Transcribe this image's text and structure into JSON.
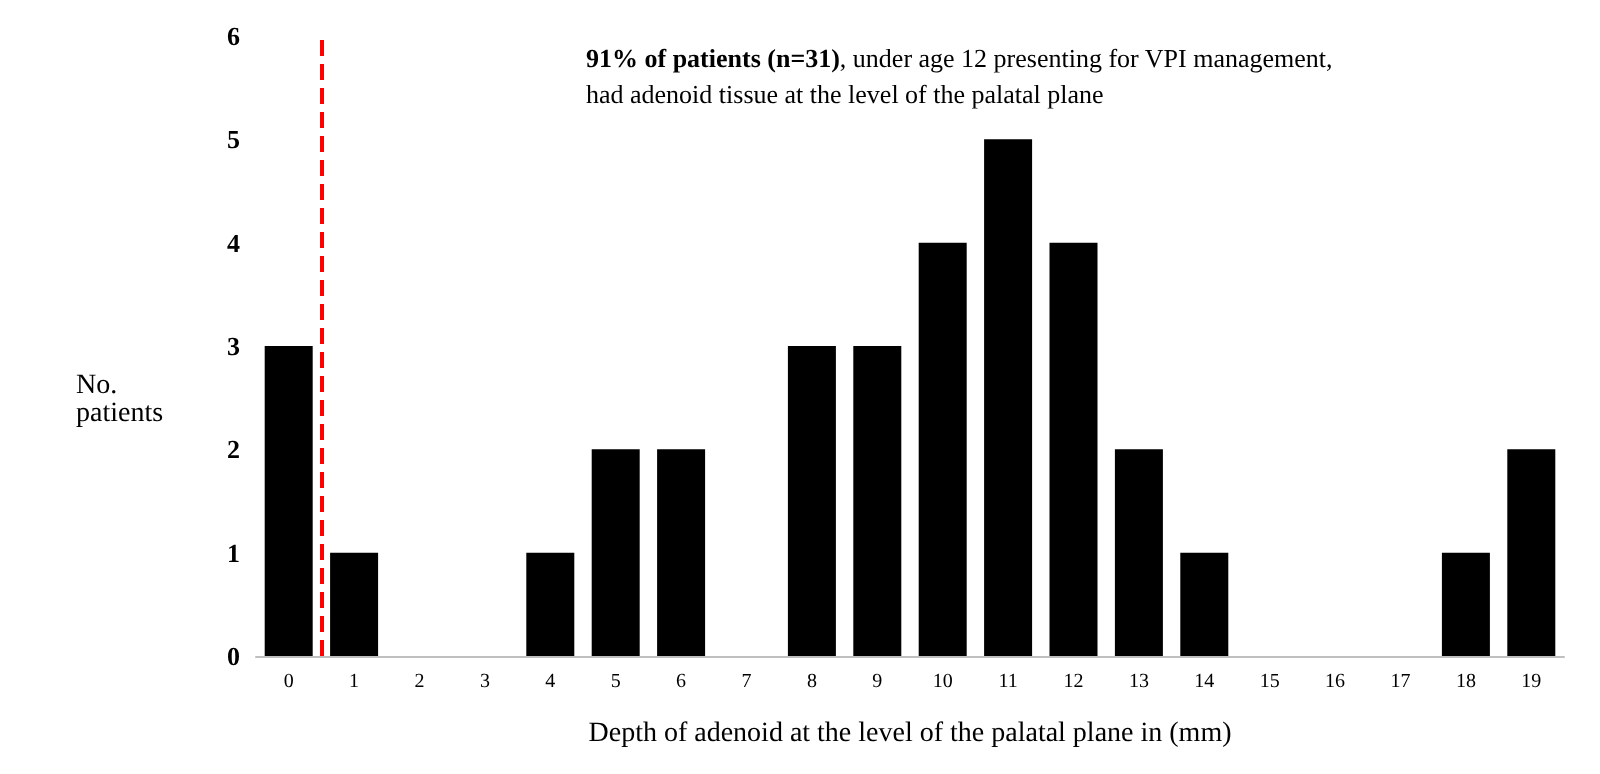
{
  "chart_data": {
    "type": "bar",
    "x": [
      0,
      1,
      2,
      3,
      4,
      5,
      6,
      7,
      8,
      9,
      10,
      11,
      12,
      13,
      14,
      15,
      16,
      17,
      18,
      19
    ],
    "values": [
      3,
      1,
      0,
      0,
      1,
      2,
      2,
      0,
      3,
      3,
      4,
      5,
      4,
      2,
      1,
      0,
      0,
      0,
      1,
      2
    ],
    "color": "#000000",
    "xlabel": "Depth of adenoid at the level of the palatal plane in (mm)",
    "ylabel": "No.\npatients",
    "xlim": [
      -0.5,
      19.5
    ],
    "xticks": [
      0,
      1,
      2,
      3,
      4,
      5,
      6,
      7,
      8,
      9,
      10,
      11,
      12,
      13,
      14,
      15,
      16,
      17,
      18,
      19
    ],
    "ylim": [
      0,
      6
    ],
    "yticks": [
      0,
      1,
      2,
      3,
      4,
      5,
      6
    ],
    "grid": false,
    "ref_lines": [
      {
        "axis": "x",
        "value": 0.5,
        "color": "#ff0000",
        "line_style": "dashed"
      }
    ],
    "annotations": [
      "91% of patients (n=31)",
      ", under age 12 presenting for VPI management, had adenoid tissue at the level of the palatal plane"
    ]
  }
}
